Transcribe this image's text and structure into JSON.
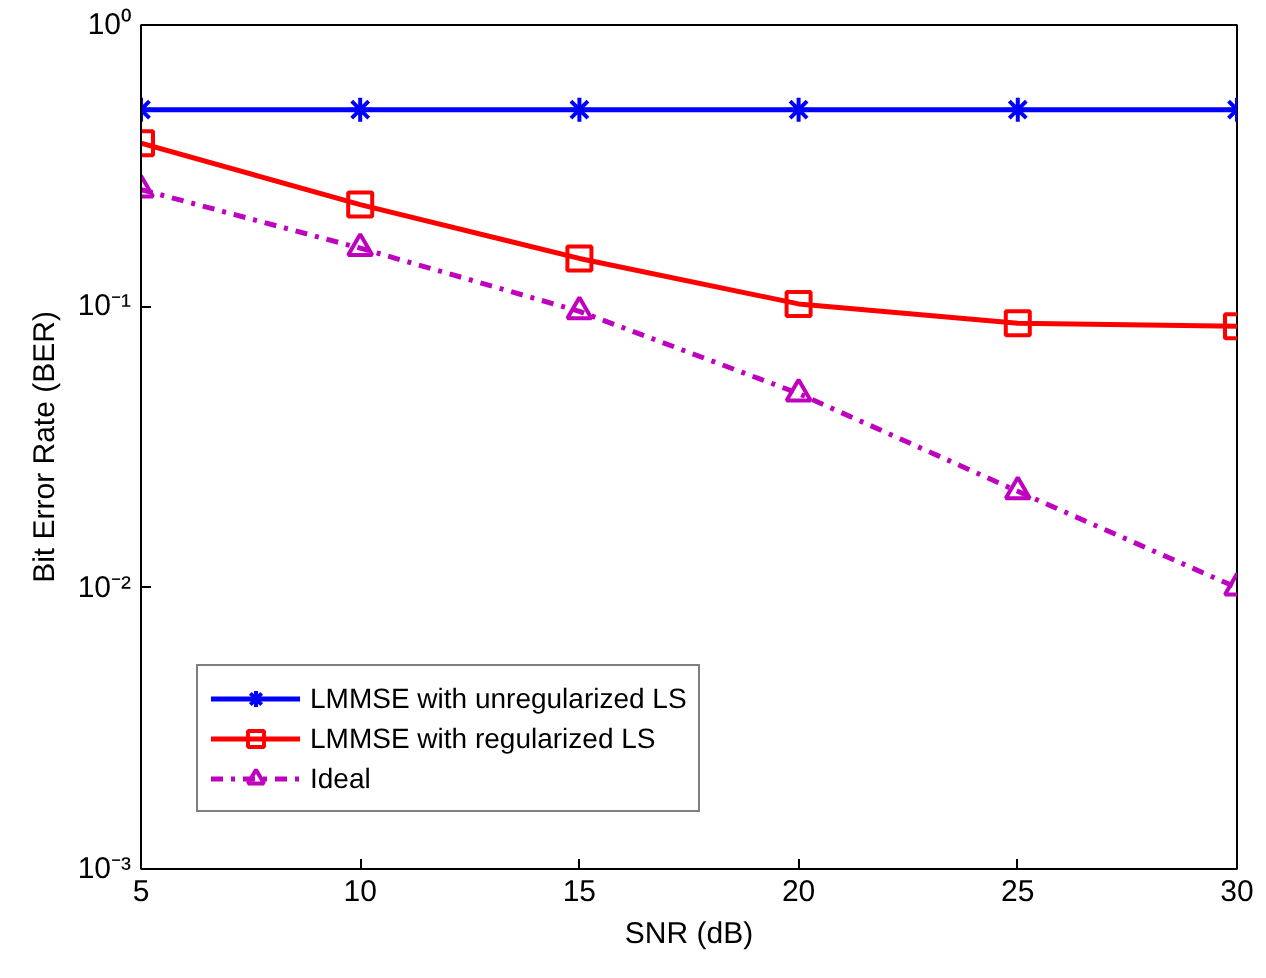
{
  "chart_data": {
    "type": "line",
    "xlabel": "SNR (dB)",
    "ylabel": "Bit Error Rate (BER)",
    "log": "y",
    "grid": false,
    "legend": "bottom left",
    "x": [
      5,
      10,
      15,
      20,
      25,
      30
    ],
    "xlim": [
      5,
      30
    ],
    "xticks": [
      5,
      10,
      15,
      20,
      25,
      30
    ],
    "ylim": [
      0.001,
      1
    ],
    "yticks": [
      {
        "value": 1,
        "label": "10⁰"
      },
      {
        "value": 0.1,
        "label": "10⁻¹"
      },
      {
        "value": 0.01,
        "label": "10⁻²"
      },
      {
        "value": 0.001,
        "label": "10⁻³"
      }
    ],
    "series": [
      {
        "name": "LMMSE with unregularized LS",
        "color": "#0000ff",
        "marker": "cross",
        "line_style": "solid",
        "values": [
          0.5,
          0.5,
          0.5,
          0.5,
          0.5,
          0.5
        ]
      },
      {
        "name": "LMMSE with regularized LS",
        "color": "#ff0000",
        "marker": "square",
        "line_style": "solid",
        "values": [
          0.38,
          0.23,
          0.148,
          0.102,
          0.087,
          0.085
        ]
      },
      {
        "name": "Ideal",
        "color": "#bf00bf",
        "marker": "triangle",
        "line_style": "dashdot",
        "values": [
          0.26,
          0.161,
          0.096,
          0.049,
          0.022,
          0.01
        ]
      }
    ]
  }
}
